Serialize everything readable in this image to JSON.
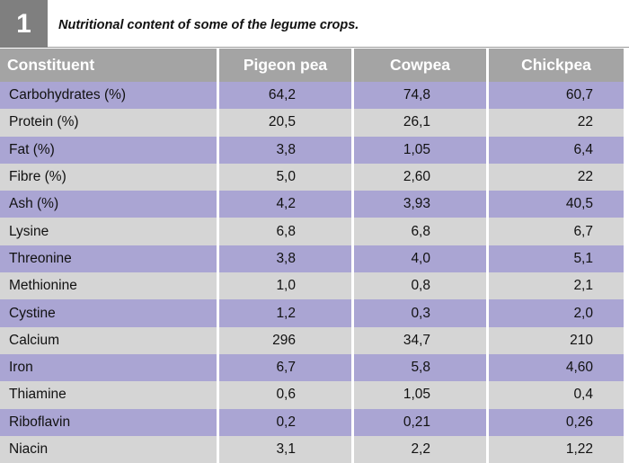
{
  "figure": {
    "number": "1",
    "caption": "Nutritional content of some of the legume crops."
  },
  "table": {
    "headers": [
      "Constituent",
      "Pigeon pea",
      "Cowpea",
      "Chickpea"
    ],
    "rows": [
      [
        "Carbohydrates (%)",
        "64,2",
        "74,8",
        "60,7"
      ],
      [
        "Protein (%)",
        "20,5",
        "26,1",
        "22"
      ],
      [
        "Fat (%)",
        "3,8",
        "1,05",
        "6,4"
      ],
      [
        "Fibre (%)",
        "5,0",
        "2,60",
        "22"
      ],
      [
        "Ash (%)",
        "4,2",
        "3,93",
        "40,5"
      ],
      [
        "Lysine",
        "6,8",
        "6,8",
        "6,7"
      ],
      [
        "Threonine",
        "3,8",
        "4,0",
        "5,1"
      ],
      [
        "Methionine",
        "1,0",
        "0,8",
        "2,1"
      ],
      [
        "Cystine",
        "1,2",
        "0,3",
        "2,0"
      ],
      [
        "Calcium",
        "296",
        "34,7",
        "210"
      ],
      [
        "Iron",
        "6,7",
        "5,8",
        "4,60"
      ],
      [
        "Thiamine",
        "0,6",
        "1,05",
        "0,4"
      ],
      [
        "Riboflavin",
        "0,2",
        "0,21",
        "0,26"
      ],
      [
        "Niacin",
        "3,1",
        "2,2",
        "1,22"
      ]
    ]
  },
  "colors": {
    "header_bg": "#a4a4a4",
    "row_purple": "#aaa5d3",
    "row_grey": "#d5d5d5",
    "number_box": "#7f7f7f"
  }
}
